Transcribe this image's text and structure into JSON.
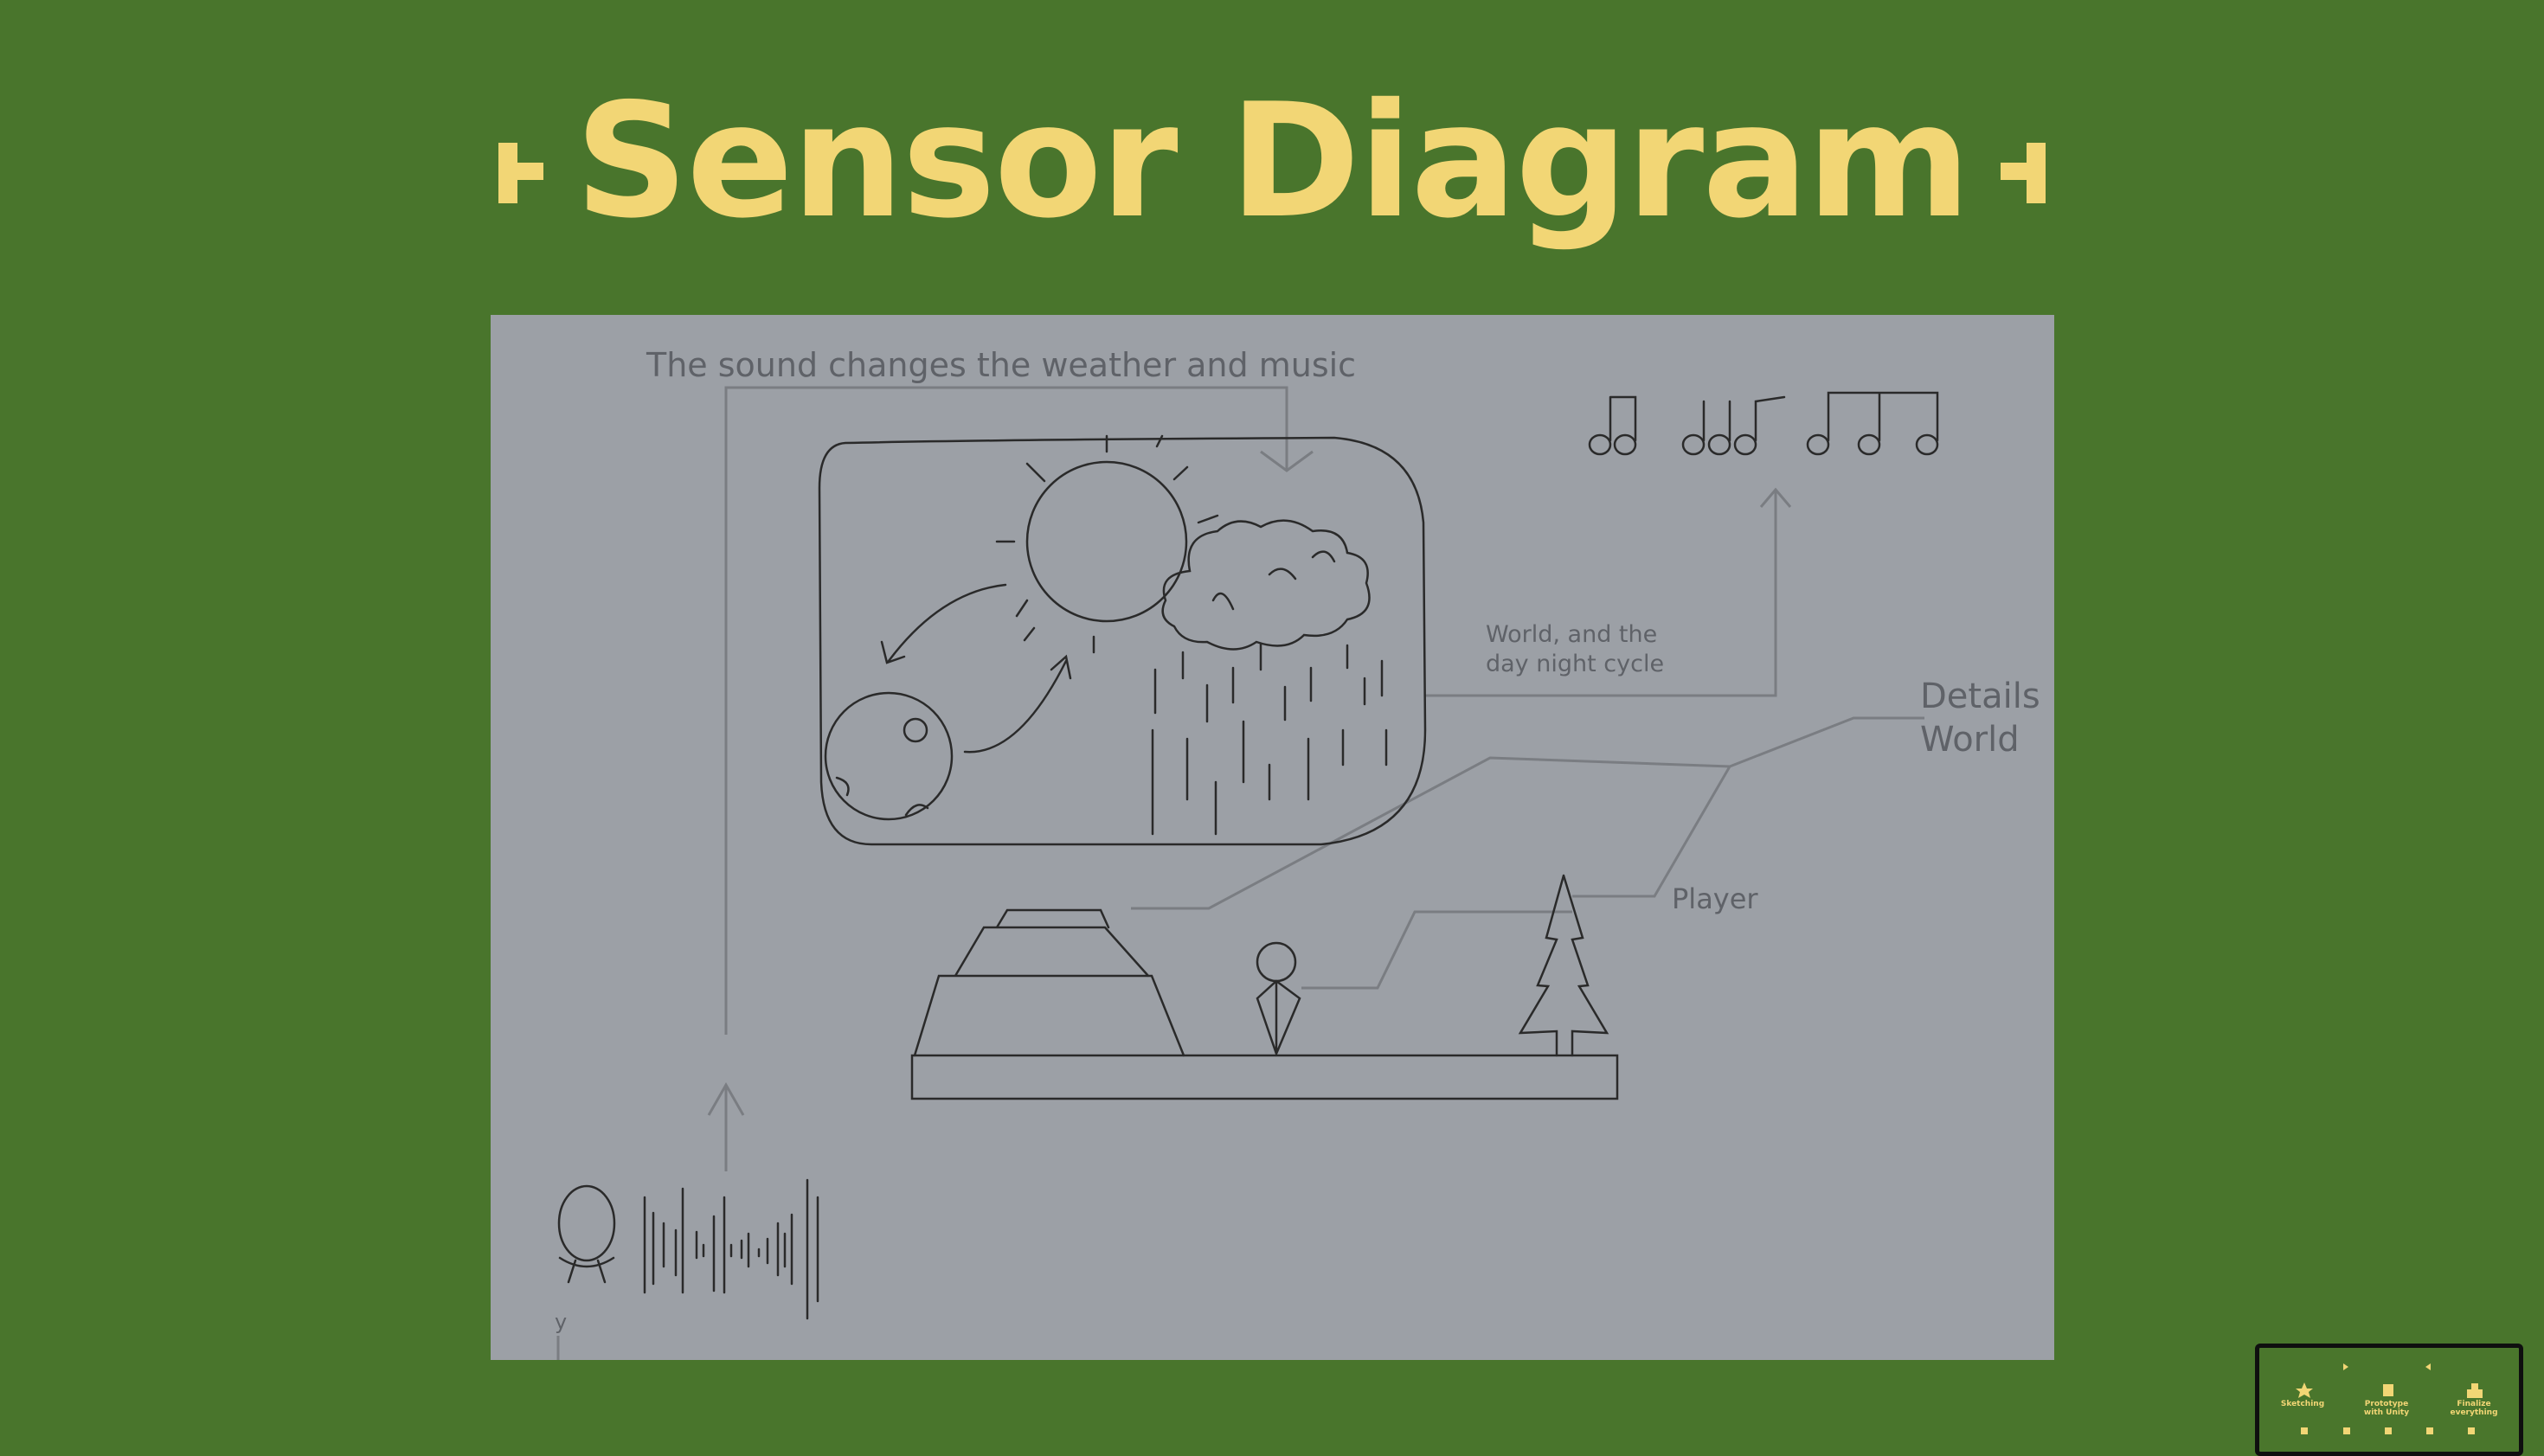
{
  "title": "Sensor Diagram",
  "colors": {
    "background": "#49752C",
    "title": "#F2D675",
    "slide": "#9CA0A6",
    "sketch": "#2a2a2a"
  },
  "diagram": {
    "caption_sound": "The sound changes the weather and music",
    "label_world": [
      "World, and the",
      "day night cycle"
    ],
    "label_details": [
      "Details",
      "World"
    ],
    "label_player": "Player",
    "label_y": "y"
  },
  "thumbnail": {
    "items": [
      "Sketching",
      "Prototype with Unity",
      "Finalize everything"
    ]
  }
}
